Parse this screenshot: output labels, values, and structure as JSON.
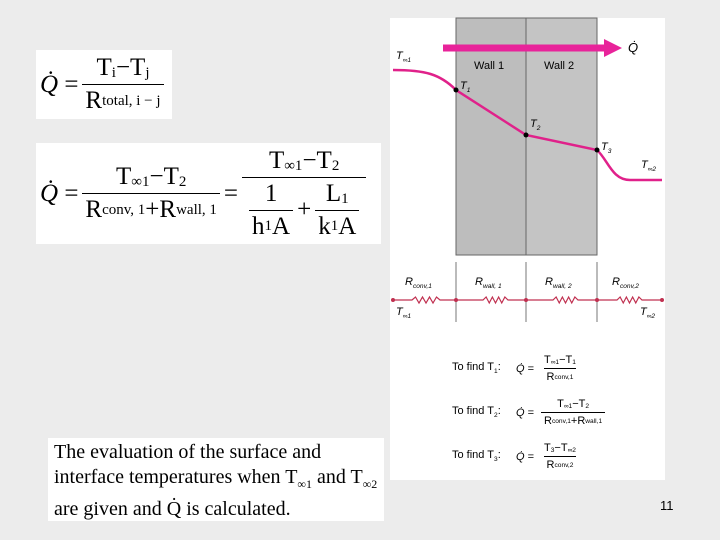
{
  "equation_1": {
    "lhs": [
      [
        "Q̇"
      ]
    ],
    "eq": "=",
    "num": [
      [
        "T",
        "i"
      ],
      [
        " − "
      ],
      [
        "T",
        "j"
      ]
    ],
    "den": [
      [
        "R",
        "total, i − j"
      ]
    ]
  },
  "equation_2": {
    "lhs": [
      [
        "Q̇"
      ]
    ],
    "eq_1": "=",
    "frac_1": {
      "num": [
        [
          "T",
          "∞1"
        ],
        [
          " − "
        ],
        [
          "T",
          "2"
        ]
      ],
      "den": [
        [
          "R",
          "conv, 1"
        ],
        [
          " + "
        ],
        [
          "R",
          "wall, 1"
        ]
      ]
    },
    "eq_2": "=",
    "frac_2": {
      "num": [
        [
          "T",
          "∞1"
        ],
        [
          " − "
        ],
        [
          "T",
          "2"
        ]
      ],
      "den": {
        "frac_a": {
          "num": [
            [
              "1"
            ]
          ],
          "den": [
            [
              "h",
              "1"
            ],
            [
              " A"
            ]
          ]
        },
        "plus": "+",
        "frac_b": {
          "num": [
            [
              "L",
              "1"
            ]
          ],
          "den": [
            [
              "k",
              "1"
            ],
            [
              " A"
            ]
          ]
        }
      }
    }
  },
  "caption": [
    [
      "The evaluation of the surface and interface temperatures when "
    ],
    [
      "T",
      "∞1"
    ],
    [
      " and "
    ],
    [
      "T",
      "∞2"
    ],
    [
      " are given and "
    ],
    [
      "Q̇"
    ],
    [
      " is calculated."
    ]
  ],
  "diagram": {
    "heat_flow": [
      [
        "Q̇"
      ]
    ],
    "walls": [
      "Wall 1",
      "Wall 2"
    ],
    "temperatures": [
      [
        [
          "T",
          "∞1"
        ]
      ],
      [
        [
          "T",
          "1"
        ]
      ],
      [
        [
          "T",
          "2"
        ]
      ],
      [
        [
          "T",
          "3"
        ]
      ],
      [
        [
          "T",
          "∞2"
        ]
      ]
    ],
    "resistances": [
      [
        [
          "R",
          "conv,1"
        ]
      ],
      [
        [
          "R",
          "wall, 1"
        ]
      ],
      [
        [
          "R",
          "wall, 2"
        ]
      ],
      [
        [
          "R",
          "conv,2"
        ]
      ]
    ],
    "ambient_labels": [
      [
        [
          "T",
          "∞1"
        ]
      ],
      [
        [
          "T",
          "∞2"
        ]
      ]
    ],
    "formulas": [
      {
        "label": [
          [
            "To find "
          ],
          [
            "T",
            "1"
          ],
          [
            ":"
          ]
        ],
        "lhs": [
          [
            "Q̇"
          ]
        ],
        "eq": "=",
        "num": [
          [
            "T",
            "∞1"
          ],
          [
            " − "
          ],
          [
            "T",
            "1"
          ]
        ],
        "den": [
          [
            "R",
            "conv,1"
          ]
        ]
      },
      {
        "label": [
          [
            "To find "
          ],
          [
            "T",
            "2"
          ],
          [
            ":"
          ]
        ],
        "lhs": [
          [
            "Q̇"
          ]
        ],
        "eq": "=",
        "num": [
          [
            "T",
            "∞1"
          ],
          [
            " − "
          ],
          [
            "T",
            "2"
          ]
        ],
        "den": [
          [
            "R",
            "conv,1"
          ],
          [
            " + "
          ],
          [
            "R",
            "wall,1"
          ]
        ]
      },
      {
        "label": [
          [
            "To find "
          ],
          [
            "T",
            "3"
          ],
          [
            ":"
          ]
        ],
        "lhs": [
          [
            "Q̇"
          ]
        ],
        "eq": "=",
        "num": [
          [
            "T",
            "3"
          ],
          [
            " − "
          ],
          [
            "T",
            "∞2"
          ]
        ],
        "den": [
          [
            "R",
            "conv,2"
          ]
        ]
      }
    ]
  },
  "page_number": "11"
}
